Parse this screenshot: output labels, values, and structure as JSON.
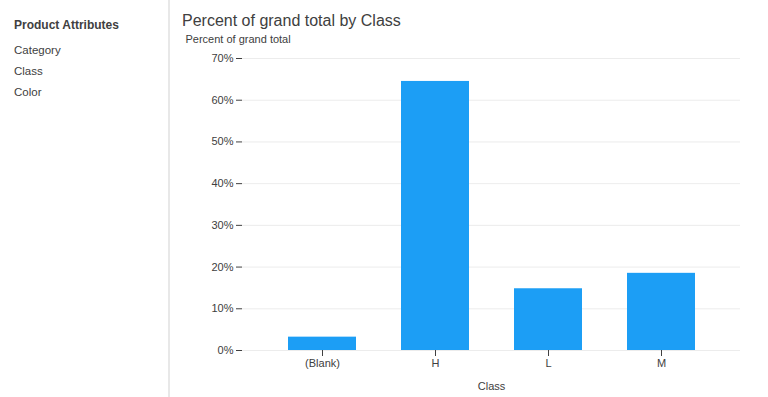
{
  "chart_data": {
    "type": "bar",
    "title": "Percent of grand total by Class",
    "categories": [
      "(Blank)",
      "H",
      "L",
      "M"
    ],
    "values": [
      3.2,
      64.5,
      14.8,
      18.5
    ],
    "color": "#1c9ef5",
    "xlabel": "Class",
    "ylabel": "Percent of grand total",
    "ylim": [
      0,
      70
    ],
    "yticks": [
      {
        "value": 0,
        "label": "0%"
      },
      {
        "value": 10,
        "label": "10%"
      },
      {
        "value": 20,
        "label": "20%"
      },
      {
        "value": 30,
        "label": "30%"
      },
      {
        "value": 40,
        "label": "40%"
      },
      {
        "value": 50,
        "label": "50%"
      },
      {
        "value": 60,
        "label": "60%"
      },
      {
        "value": 70,
        "label": "70%"
      }
    ],
    "grid": true,
    "annotations": [
      "Product Attributes",
      "Category",
      "Class",
      "Color"
    ]
  }
}
